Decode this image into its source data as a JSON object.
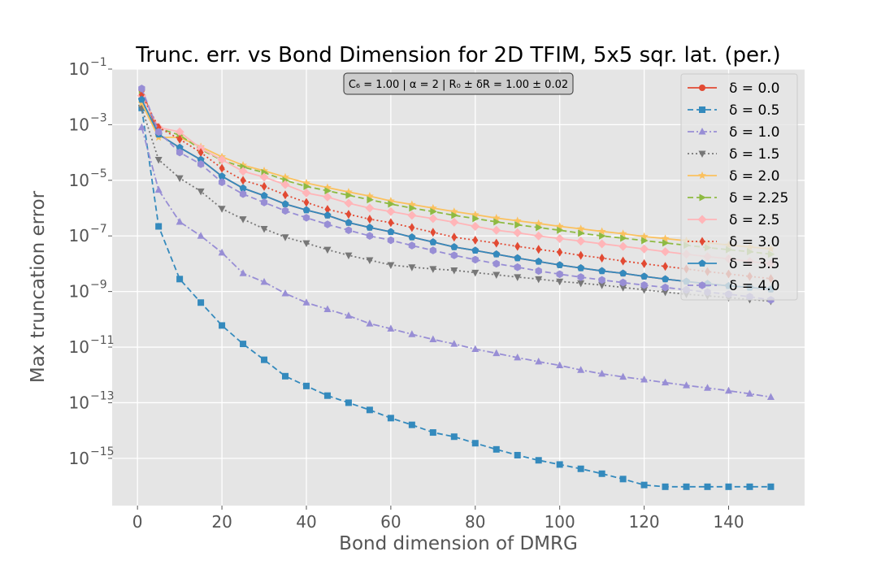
{
  "chart_data": {
    "type": "line",
    "title": "Trunc. err. vs Bond Dimension for 2D TFIM, 5x5 sqr. lat. (per.)",
    "xlabel": "Bond dimension of DMRG",
    "ylabel": "Max truncation error",
    "annotation": "C₆ = 1.00 | α = 2 | R₀ ± δR = 1.00 ± 0.02",
    "xlim": [
      -6,
      158
    ],
    "ylim_log10": [
      -16.7,
      -1
    ],
    "y_scale": "log",
    "grid": true,
    "legend_position": "upper-right",
    "x_ticks": [
      {
        "value": 0,
        "label": "0"
      },
      {
        "value": 20,
        "label": "20"
      },
      {
        "value": 40,
        "label": "40"
      },
      {
        "value": 60,
        "label": "60"
      },
      {
        "value": 80,
        "label": "80"
      },
      {
        "value": 100,
        "label": "100"
      },
      {
        "value": 120,
        "label": "120"
      },
      {
        "value": 140,
        "label": "140"
      }
    ],
    "y_ticks": [
      {
        "exp": -1,
        "base": "10",
        "sup": "−1"
      },
      {
        "exp": -3,
        "base": "10",
        "sup": "−3"
      },
      {
        "exp": -5,
        "base": "10",
        "sup": "−5"
      },
      {
        "exp": -7,
        "base": "10",
        "sup": "−7"
      },
      {
        "exp": -9,
        "base": "10",
        "sup": "−9"
      },
      {
        "exp": -11,
        "base": "10",
        "sup": "−11"
      },
      {
        "exp": -13,
        "base": "10",
        "sup": "−13"
      },
      {
        "exp": -15,
        "base": "10",
        "sup": "−15"
      }
    ],
    "x": [
      1,
      5,
      10,
      15,
      20,
      25,
      30,
      35,
      40,
      45,
      50,
      55,
      60,
      65,
      70,
      75,
      80,
      85,
      90,
      95,
      100,
      105,
      110,
      115,
      120,
      125,
      130,
      135,
      140,
      145,
      150
    ],
    "series": [
      {
        "name": "δ = 0.0",
        "color": "#E24A33",
        "dash": "solid",
        "marker": "circle",
        "values": [
          0.018,
          0.00045,
          0.00015,
          5.5e-05,
          1.4e-05,
          5.2e-06,
          2.8e-06,
          1.4e-06,
          8.5e-07,
          5.5e-07,
          3e-07,
          2e-07,
          1.4e-07,
          9e-08,
          6e-08,
          4e-08,
          3e-08,
          2.2e-08,
          1.6e-08,
          1.2e-08,
          9e-09,
          7e-09,
          5.5e-09,
          4.5e-09,
          3.5e-09,
          2.8e-09,
          2.3e-09,
          1.9e-09,
          1.6e-09,
          1.4e-09,
          1.2e-09
        ]
      },
      {
        "name": "δ = 0.5",
        "color": "#348ABD",
        "dash": "dashed",
        "marker": "square",
        "values": [
          0.004,
          2.2e-07,
          2.8e-09,
          4e-10,
          6e-11,
          1.3e-11,
          3.5e-12,
          9e-13,
          4e-13,
          1.8e-13,
          1e-13,
          5.5e-14,
          2.8e-14,
          1.6e-14,
          8.5e-15,
          6e-15,
          3.5e-15,
          2.1e-15,
          1.3e-15,
          8.5e-16,
          6e-16,
          4.2e-16,
          2.8e-16,
          1.8e-16,
          1.1e-16,
          9.5e-17,
          9.5e-17,
          9.5e-17,
          9.5e-17,
          9.5e-17,
          9.5e-17
        ]
      },
      {
        "name": "δ = 1.0",
        "color": "#988ED5",
        "dash": "dashdot",
        "marker": "triangle",
        "values": [
          0.0008,
          4.5e-06,
          3.2e-07,
          1e-07,
          2.5e-08,
          4.5e-09,
          2.2e-09,
          8.5e-10,
          4e-10,
          2.3e-10,
          1.35e-10,
          7e-11,
          4.6e-11,
          2.9e-11,
          1.9e-11,
          1.3e-11,
          8.5e-12,
          6e-12,
          4.2e-12,
          3e-12,
          2.2e-12,
          1.5e-12,
          1.1e-12,
          8.5e-13,
          6.8e-13,
          5.3e-13,
          4.2e-13,
          3.4e-13,
          2.7e-13,
          2.1e-13,
          1.6e-13
        ]
      },
      {
        "name": "δ = 1.5",
        "color": "#777777",
        "dash": "dotted",
        "marker": "triangle-down",
        "values": [
          0.004,
          5.5e-05,
          1.2e-05,
          4e-06,
          9.5e-07,
          4e-07,
          1.8e-07,
          9e-08,
          5.5e-08,
          3.2e-08,
          2e-08,
          1.35e-08,
          9e-09,
          7.5e-09,
          6.5e-09,
          5.8e-09,
          4.8e-09,
          4e-09,
          3.3e-09,
          2.8e-09,
          2.3e-09,
          2e-09,
          1.7e-09,
          1.4e-09,
          1.15e-09,
          9.5e-10,
          8e-10,
          7e-10,
          6e-10,
          5.2e-10,
          4.5e-10
        ]
      },
      {
        "name": "δ = 2.0",
        "color": "#FBC15E",
        "dash": "solid",
        "marker": "star",
        "values": [
          0.006,
          0.00035,
          0.00035,
          0.00016,
          7e-05,
          3.5e-05,
          2.2e-05,
          1.3e-05,
          8e-06,
          5.5e-06,
          3.8e-06,
          2.7e-06,
          1.8e-06,
          1.35e-06,
          1e-06,
          7.5e-07,
          5.8e-07,
          4.4e-07,
          3.5e-07,
          2.8e-07,
          2.2e-07,
          1.8e-07,
          1.45e-07,
          1.2e-07,
          9.5e-08,
          8e-08,
          6.7e-08,
          5.6e-08,
          4.7e-08,
          4e-08,
          3.4e-08
        ]
      },
      {
        "name": "δ = 2.25",
        "color": "#8EBA42",
        "dash": "dashed",
        "marker": "triangle-right",
        "values": [
          0.012,
          0.00075,
          0.00042,
          0.00013,
          5.2e-05,
          3e-05,
          1.9e-05,
          1e-05,
          6e-06,
          4.2e-06,
          2.9e-06,
          2e-06,
          1.4e-06,
          1e-06,
          7.5e-07,
          5.5e-07,
          4.2e-07,
          3.2e-07,
          2.5e-07,
          2e-07,
          1.6e-07,
          1.25e-07,
          1e-07,
          8.3e-08,
          6.8e-08,
          5.6e-08,
          4.6e-08,
          3.8e-08,
          3.2e-08,
          2.7e-08,
          2.2e-08
        ]
      },
      {
        "name": "δ = 2.5",
        "color": "#FFB5B8",
        "dash": "solid",
        "marker": "diamond",
        "values": [
          0.011,
          0.0008,
          0.00055,
          0.00014,
          5.5e-05,
          2.1e-05,
          1.3e-05,
          7e-06,
          3.5e-06,
          2.5e-06,
          1.5e-06,
          1e-06,
          7.5e-07,
          5.5e-07,
          4.2e-07,
          3.1e-07,
          2.2e-07,
          1.6e-07,
          1.3e-07,
          1e-07,
          8e-08,
          6.5e-08,
          5.2e-08,
          4.2e-08,
          3.4e-08,
          2.7e-08,
          2.2e-08,
          1.8e-08,
          1.5e-08,
          1.2e-08,
          1e-08
        ]
      },
      {
        "name": "δ = 3.0",
        "color": "#E24A33",
        "dash": "dotted",
        "marker": "thin-diamond",
        "values": [
          0.012,
          0.0008,
          0.0003,
          0.0001,
          2.7e-05,
          1e-05,
          6e-06,
          3e-06,
          1.6e-06,
          9e-07,
          6e-07,
          4e-07,
          3e-07,
          2e-07,
          1.35e-07,
          9e-08,
          7e-08,
          5.5e-08,
          4.2e-08,
          3.3e-08,
          2.6e-08,
          2e-08,
          1.6e-08,
          1.25e-08,
          1e-08,
          8e-09,
          6.5e-09,
          5.2e-09,
          4.3e-09,
          3.5e-09,
          2.9e-09
        ]
      },
      {
        "name": "δ = 3.5",
        "color": "#348ABD",
        "dash": "solid",
        "marker": "pentagon",
        "values": [
          0.008,
          0.00045,
          0.00015,
          5.5e-05,
          1.4e-05,
          5.2e-06,
          2.8e-06,
          1.4e-06,
          8.5e-07,
          5.5e-07,
          3e-07,
          2e-07,
          1.4e-07,
          9e-08,
          6e-08,
          4e-08,
          3e-08,
          2.2e-08,
          1.6e-08,
          1.2e-08,
          9e-09,
          7e-09,
          5.5e-09,
          4.5e-09,
          3.5e-09,
          2.8e-09,
          2.3e-09,
          1.9e-09,
          1.6e-09,
          1.4e-09,
          1.2e-09
        ]
      },
      {
        "name": "δ = 4.0",
        "color": "#988ED5",
        "dash": "dashed",
        "marker": "hexagon",
        "values": [
          0.02,
          0.00055,
          0.0001,
          3.8e-05,
          8.5e-06,
          3.2e-06,
          1.6e-06,
          8e-07,
          4.5e-07,
          2.6e-07,
          1.6e-07,
          1e-07,
          7e-08,
          4.5e-08,
          3e-08,
          2e-08,
          1.4e-08,
          1e-08,
          7.5e-09,
          5.5e-09,
          4.2e-09,
          3.3e-09,
          2.6e-09,
          2.1e-09,
          1.7e-09,
          1.4e-09,
          1.15e-09,
          9.5e-10,
          8e-10,
          6.5e-10,
          5e-10
        ]
      }
    ]
  }
}
